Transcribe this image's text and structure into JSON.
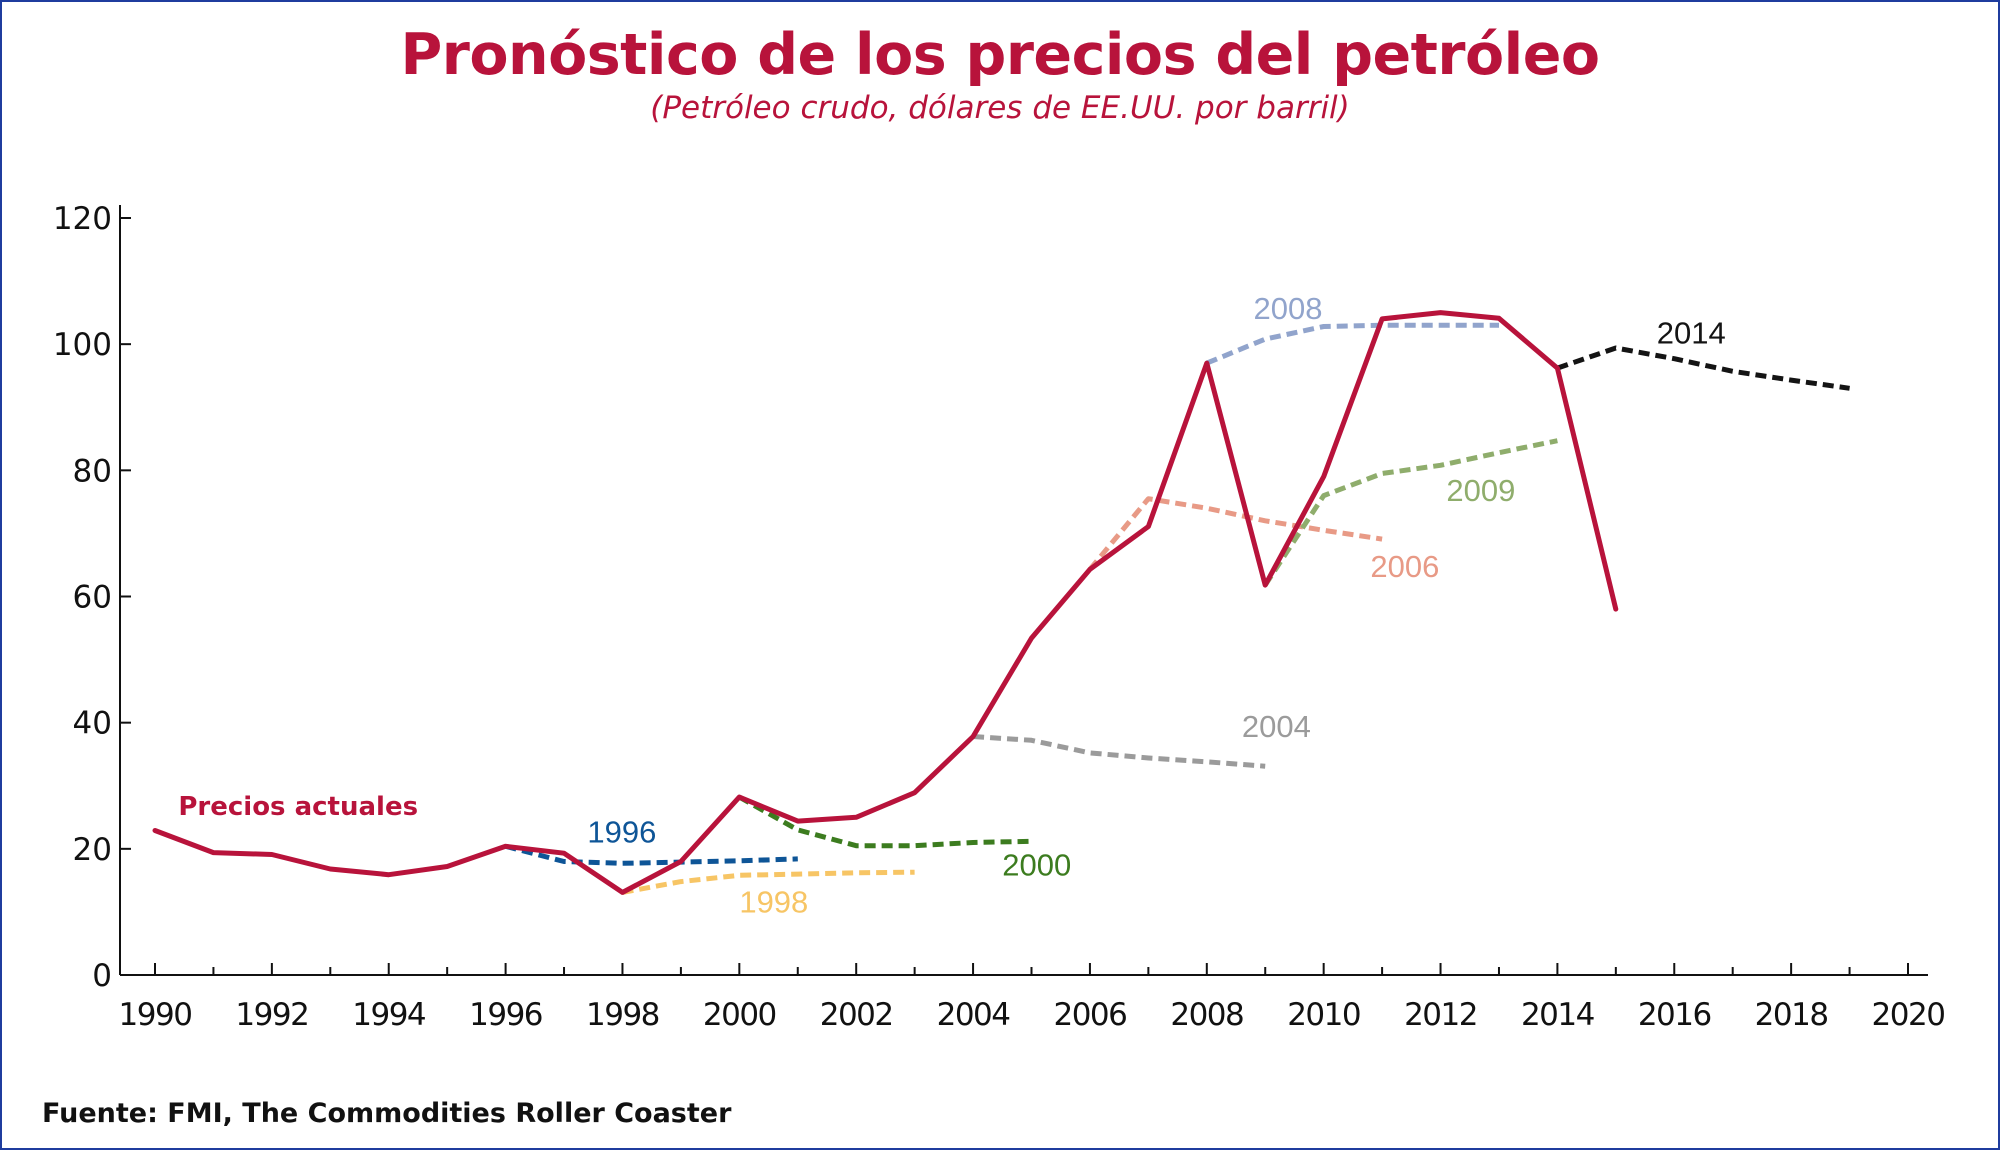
{
  "title": "Pronóstico de los precios del petróleo",
  "subtitle": "(Petróleo crudo, dólares de EE.UU. por barril)",
  "source": "Fuente: FMI, The Commodities Roller Coaster",
  "chart_data": {
    "type": "line",
    "xlim": [
      1990,
      2020
    ],
    "ylim": [
      0,
      120
    ],
    "x_ticks": [
      "1990",
      "1992",
      "1994",
      "1996",
      "1998",
      "2000",
      "2002",
      "2004",
      "2006",
      "2008",
      "2010",
      "2012",
      "2014",
      "2016",
      "2018",
      "2020"
    ],
    "y_ticks": [
      "0",
      "20",
      "40",
      "60",
      "80",
      "100",
      "120"
    ],
    "grid": false,
    "legend": "none",
    "series": [
      {
        "name": "Precios actuales",
        "style": "solid",
        "color": "#b8133b",
        "x": [
          1990,
          1991,
          1992,
          1993,
          1994,
          1995,
          1996,
          1997,
          1998,
          1999,
          2000,
          2001,
          2002,
          2003,
          2004,
          2005,
          2006,
          2007,
          2008,
          2009,
          2010,
          2011,
          2012,
          2013,
          2014,
          2015
        ],
        "y": [
          22.9,
          19.4,
          19.1,
          16.8,
          15.9,
          17.2,
          20.4,
          19.3,
          13.1,
          18.0,
          28.2,
          24.4,
          25.0,
          28.9,
          37.8,
          53.4,
          64.3,
          71.1,
          97.0,
          61.8,
          79.0,
          104.0,
          105.0,
          104.1,
          96.2,
          58.0
        ]
      },
      {
        "name": "1996",
        "style": "dashed",
        "color": "#0e5597",
        "x": [
          1996,
          1997,
          1998,
          1999,
          2000,
          2001
        ],
        "y": [
          20.4,
          18.0,
          17.7,
          17.9,
          18.1,
          18.4
        ]
      },
      {
        "name": "1998",
        "style": "dashed",
        "color": "#f7c565",
        "x": [
          1998,
          1999,
          2000,
          2001,
          2002,
          2003
        ],
        "y": [
          13.1,
          14.8,
          15.8,
          16.0,
          16.2,
          16.3
        ]
      },
      {
        "name": "2000",
        "style": "dashed",
        "color": "#3c7c1f",
        "x": [
          2000,
          2001,
          2002,
          2003,
          2004,
          2005
        ],
        "y": [
          28.2,
          23.0,
          20.5,
          20.5,
          21.0,
          21.2
        ]
      },
      {
        "name": "2004",
        "style": "dashed",
        "color": "#9b9b9b",
        "x": [
          2004,
          2005,
          2006,
          2007,
          2008,
          2009
        ],
        "y": [
          37.8,
          37.2,
          35.2,
          34.4,
          33.8,
          33.1
        ]
      },
      {
        "name": "2006",
        "style": "dashed",
        "color": "#e89a86",
        "x": [
          2006,
          2007,
          2008,
          2009,
          2010,
          2011
        ],
        "y": [
          64.3,
          75.5,
          74.0,
          72.0,
          70.5,
          69.1
        ]
      },
      {
        "name": "2008",
        "style": "dashed",
        "color": "#91a4cc",
        "x": [
          2008,
          2009,
          2010,
          2011,
          2012,
          2013
        ],
        "y": [
          97.0,
          100.8,
          102.8,
          103.0,
          103.0,
          103.0
        ]
      },
      {
        "name": "2009",
        "style": "dashed",
        "color": "#8fad6c",
        "x": [
          2009,
          2010,
          2011,
          2012,
          2013,
          2014
        ],
        "y": [
          61.8,
          76.0,
          79.5,
          80.8,
          82.8,
          84.7
        ]
      },
      {
        "name": "2014",
        "style": "dashed",
        "color": "#141414",
        "x": [
          2014,
          2015,
          2016,
          2017,
          2018,
          2019
        ],
        "y": [
          96.2,
          99.4,
          97.7,
          95.7,
          94.3,
          93.0
        ]
      }
    ],
    "annotations": [
      {
        "series": "Precios actuales",
        "text": "Precios actuales",
        "x": 1990.4,
        "y": 25.4,
        "color": "#b8133b"
      },
      {
        "series": "1996",
        "text": "1996",
        "x": 1997.4,
        "y": 21.0,
        "color": "#0e5597"
      },
      {
        "series": "1998",
        "text": "1998",
        "x": 2000.0,
        "y": 9.9,
        "color": "#f7c565"
      },
      {
        "series": "2000",
        "text": "2000",
        "x": 2004.5,
        "y": 15.8,
        "color": "#3c7c1f"
      },
      {
        "series": "2004",
        "text": "2004",
        "x": 2008.6,
        "y": 37.7,
        "color": "#9b9b9b"
      },
      {
        "series": "2006",
        "text": "2006",
        "x": 2010.8,
        "y": 63.1,
        "color": "#e89a86"
      },
      {
        "series": "2008",
        "text": "2008",
        "x": 2008.8,
        "y": 104.0,
        "color": "#91a4cc"
      },
      {
        "series": "2009",
        "text": "2009",
        "x": 2012.1,
        "y": 75.1,
        "color": "#8fad6c"
      },
      {
        "series": "2014",
        "text": "2014",
        "x": 2015.7,
        "y": 100.1,
        "color": "#141414"
      }
    ]
  }
}
